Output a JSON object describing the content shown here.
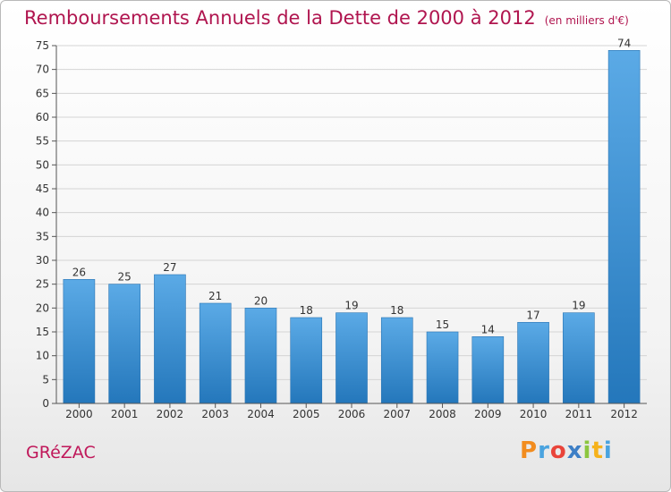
{
  "title": "Remboursements Annuels de la Dette de 2000 à 2012",
  "subtitle": "(en milliers d'€)",
  "town": "GRéZAC",
  "logo": {
    "letters": [
      {
        "ch": "P",
        "color": "#f28c1e"
      },
      {
        "ch": "r",
        "color": "#4aa3df"
      },
      {
        "ch": "o",
        "color": "#e9443a"
      },
      {
        "ch": "x",
        "color": "#3d7fc6"
      },
      {
        "ch": "i",
        "color": "#8cc63f"
      },
      {
        "ch": "t",
        "color": "#f6b21b"
      },
      {
        "ch": "i",
        "color": "#4aa3df"
      }
    ]
  },
  "chart_data": {
    "type": "bar",
    "title": "Remboursements Annuels de la Dette de 2000 à 2012",
    "subtitle": "(en milliers d'€)",
    "categories": [
      "2000",
      "2001",
      "2002",
      "2003",
      "2004",
      "2005",
      "2006",
      "2007",
      "2008",
      "2009",
      "2010",
      "2011",
      "2012"
    ],
    "values": [
      26,
      25,
      27,
      21,
      20,
      18,
      19,
      18,
      15,
      14,
      17,
      19,
      74
    ],
    "ylim": [
      0,
      75
    ],
    "yticks": [
      0,
      5,
      10,
      15,
      20,
      25,
      30,
      35,
      40,
      45,
      50,
      55,
      60,
      65,
      70,
      75
    ],
    "grid": true,
    "bar_color_top": "#5baae6",
    "bar_color_bottom": "#2477bb"
  }
}
